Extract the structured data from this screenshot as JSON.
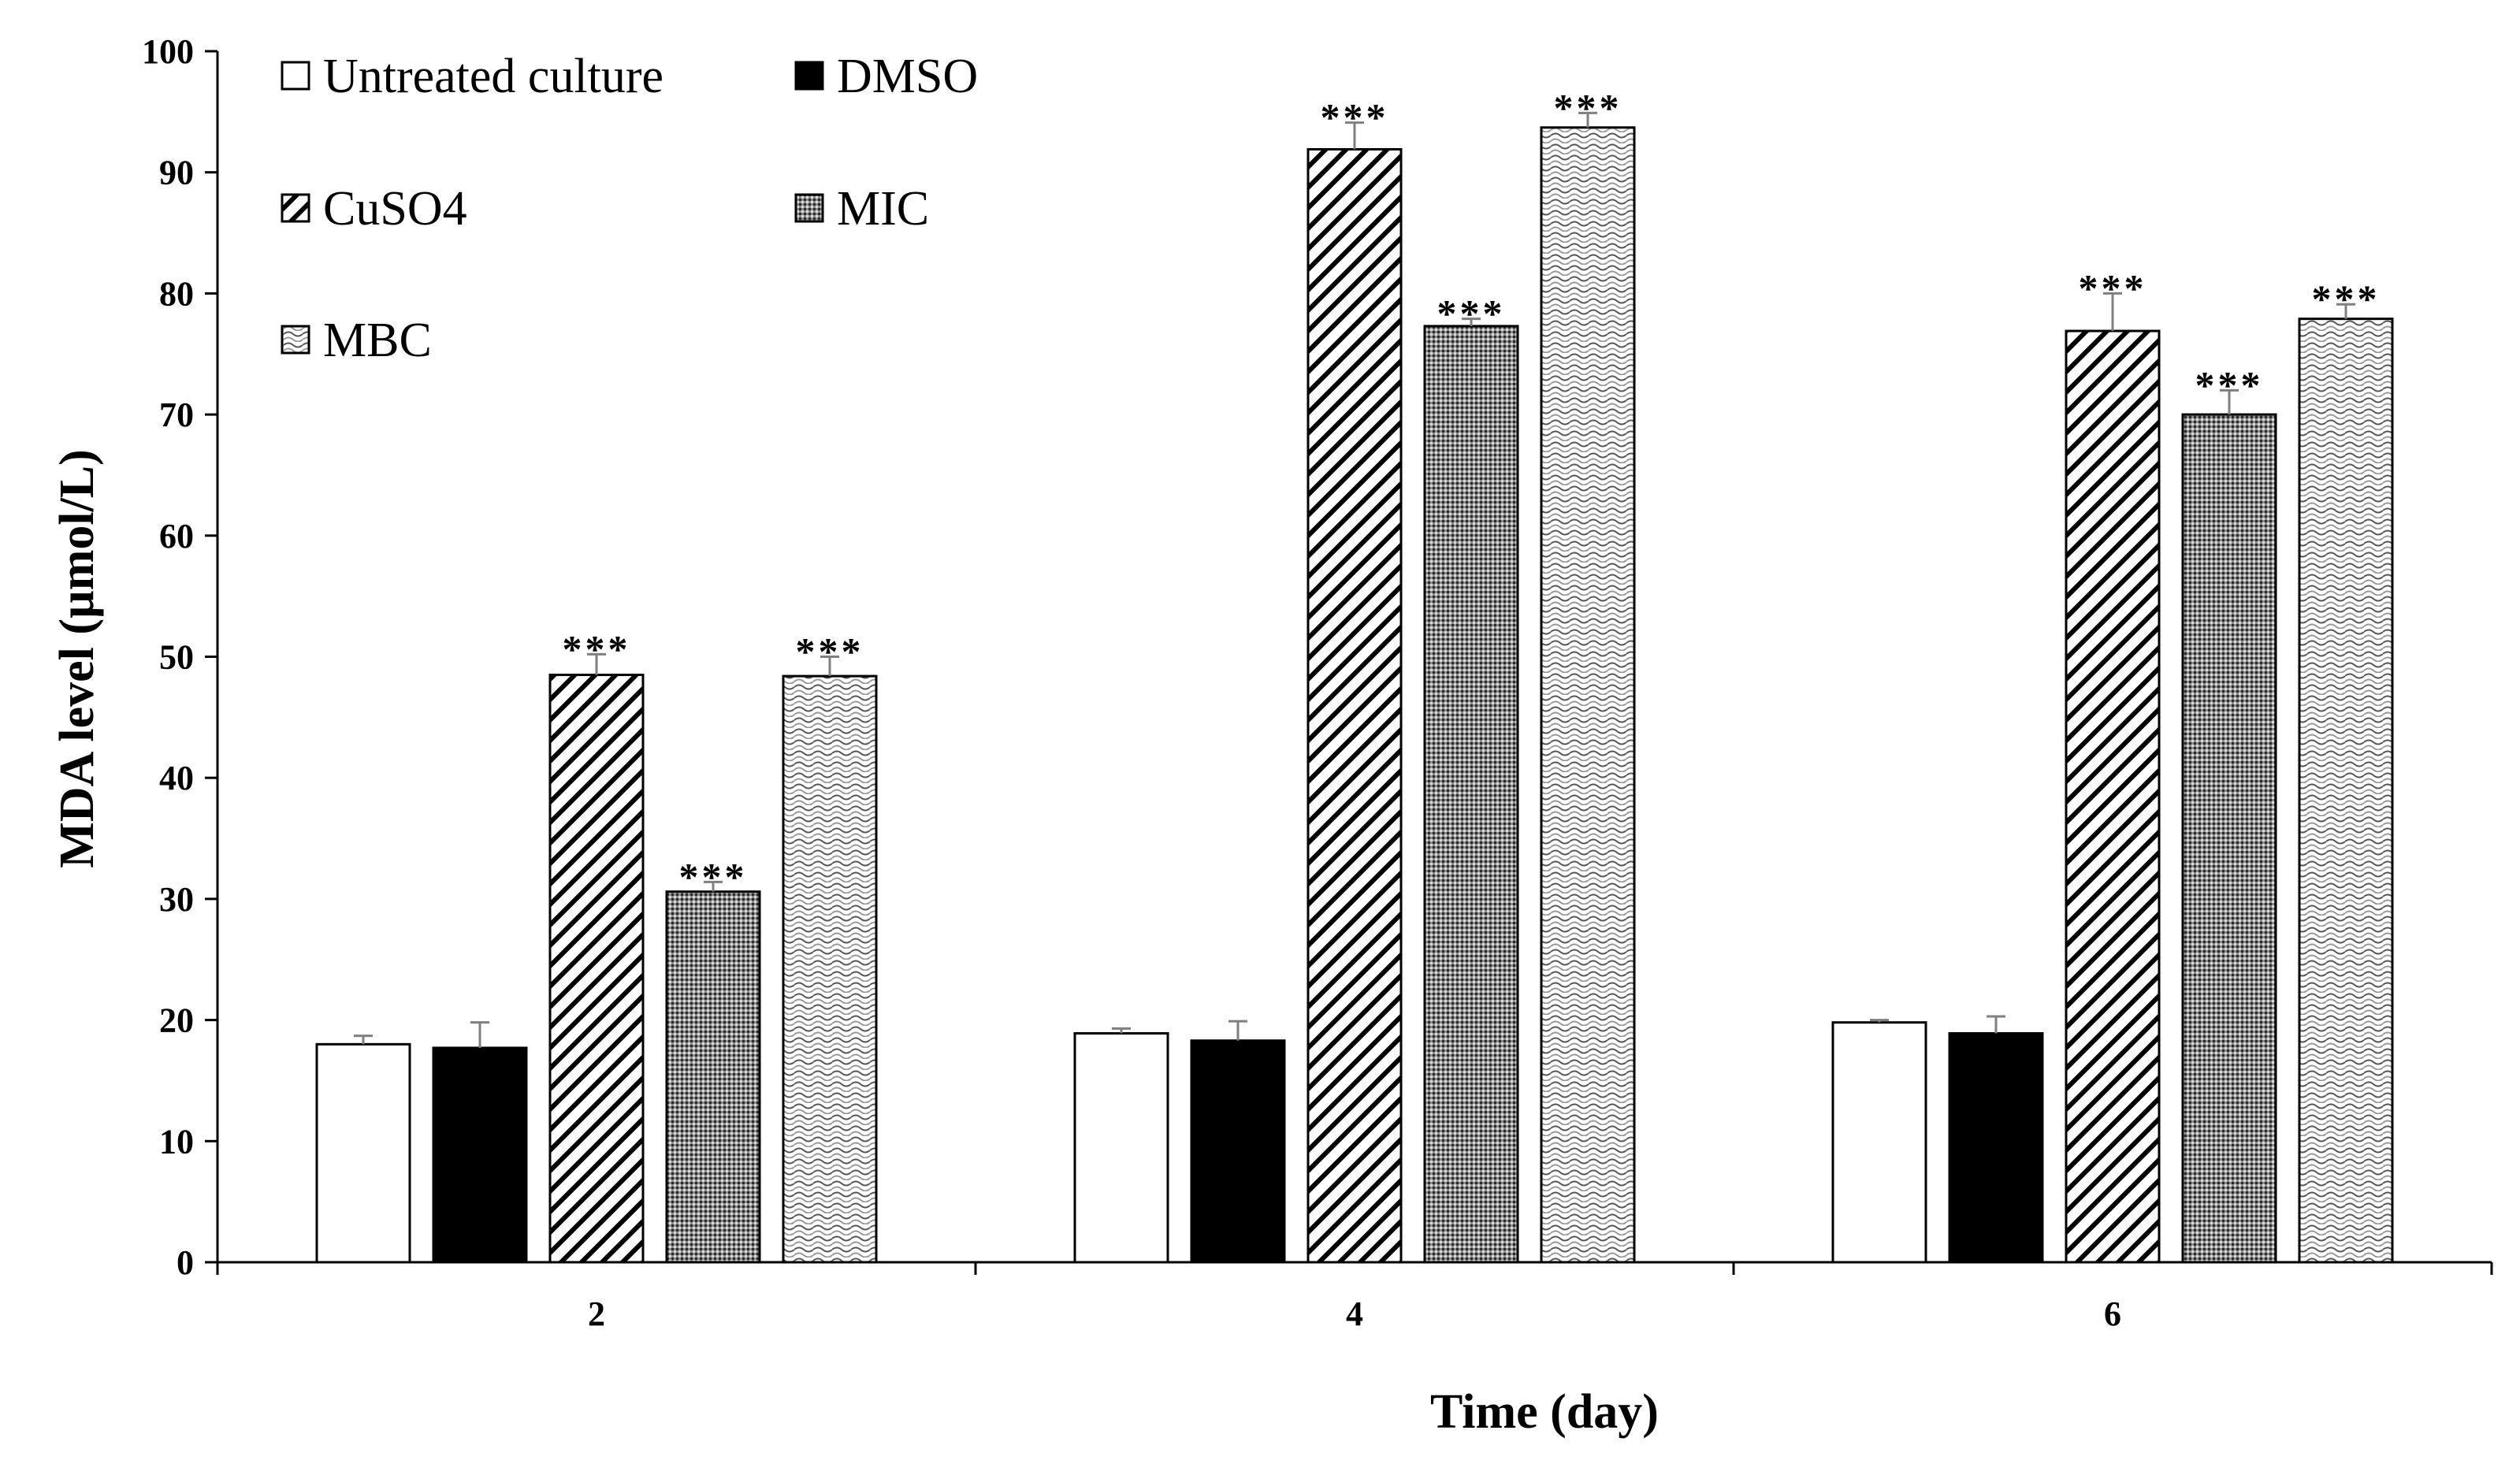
{
  "chart_data": {
    "type": "bar",
    "xlabel": "Time (day)",
    "ylabel": "MDA level (µmol/L)",
    "ylim": [
      0,
      100
    ],
    "yticks": [
      0,
      10,
      20,
      30,
      40,
      50,
      60,
      70,
      80,
      90,
      100
    ],
    "ytick_labels": [
      "0",
      "10",
      "20",
      "30",
      "40",
      "50",
      "60",
      "70",
      "80",
      "90",
      "100"
    ],
    "categories": [
      "2",
      "4",
      "6"
    ],
    "legend_position": "top-left",
    "series": [
      {
        "name": "Untreated culture",
        "pattern": "white",
        "values": [
          18.0,
          18.9,
          19.8
        ],
        "errors": [
          0.7,
          0.4,
          0.2
        ],
        "annotations": [
          "",
          "",
          ""
        ]
      },
      {
        "name": "DMSO",
        "pattern": "black",
        "values": [
          17.7,
          18.3,
          18.9
        ],
        "errors": [
          2.1,
          1.6,
          1.4
        ],
        "annotations": [
          "",
          "",
          ""
        ]
      },
      {
        "name": "CuSO4",
        "pattern": "diagonal",
        "values": [
          48.5,
          91.9,
          76.9
        ],
        "errors": [
          1.7,
          2.2,
          3.1
        ],
        "annotations": [
          "***",
          "***",
          "***"
        ]
      },
      {
        "name": "MIC",
        "pattern": "dots",
        "values": [
          30.6,
          77.3,
          70.0
        ],
        "errors": [
          0.8,
          0.6,
          2.0
        ],
        "annotations": [
          "***",
          "***",
          "***"
        ]
      },
      {
        "name": "MBC",
        "pattern": "wave",
        "values": [
          48.4,
          93.7,
          77.9
        ],
        "errors": [
          1.6,
          1.2,
          1.2
        ],
        "annotations": [
          "***",
          "***",
          "***"
        ]
      }
    ],
    "colors": {
      "axis": "#000000",
      "bar_stroke": "#000000",
      "error_bar": "#7f7f7f",
      "background": "#ffffff"
    }
  }
}
